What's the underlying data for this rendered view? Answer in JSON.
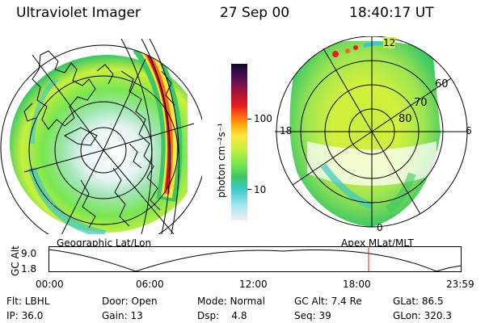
{
  "header": {
    "instrument": "Ultraviolet Imager",
    "date": "27 Sep 00",
    "time": "18:40:17 UT"
  },
  "colorbar": {
    "unit": "photon cm⁻²s⁻¹",
    "tick_100": "100",
    "tick_10": "10",
    "colors_top_to_bottom": [
      "#0a0a28",
      "#4b0f5a",
      "#b41432",
      "#e61e1e",
      "#ff6414",
      "#ffa00a",
      "#ffe63c",
      "#c8f03c",
      "#78e650",
      "#3cc864",
      "#3cc8c8",
      "#a0e6f0",
      "#f0f0f0"
    ]
  },
  "geo_panel": {
    "label": "Geographic Lat/Lon"
  },
  "apex_panel": {
    "label": "Apex MLat/MLT",
    "mlt_top": "12",
    "mlt_bottom": "0",
    "mlt_left": "18",
    "mlt_right": "6",
    "lat_60": "60",
    "lat_70": "70",
    "lat_80": "80"
  },
  "orbit_plot": {
    "ylabel": "GC Alt",
    "y_max": "9.0",
    "y_min": "1.8",
    "x_ticks": [
      "00:00",
      "06:00",
      "12:00",
      "18:00",
      "23:59"
    ]
  },
  "status": {
    "filter": "Flt: LBHL",
    "door": "Door: Open",
    "mode": "Mode: Normal",
    "gc_alt": "GC Alt: 7.4 Re",
    "glat": "GLat:  86.5",
    "ip": "IP: 36.0",
    "gain": "Gain: 13",
    "dsp": "Dsp:    4.8",
    "seq": "Seq: 39",
    "glon": "GLon: 320.3"
  }
}
